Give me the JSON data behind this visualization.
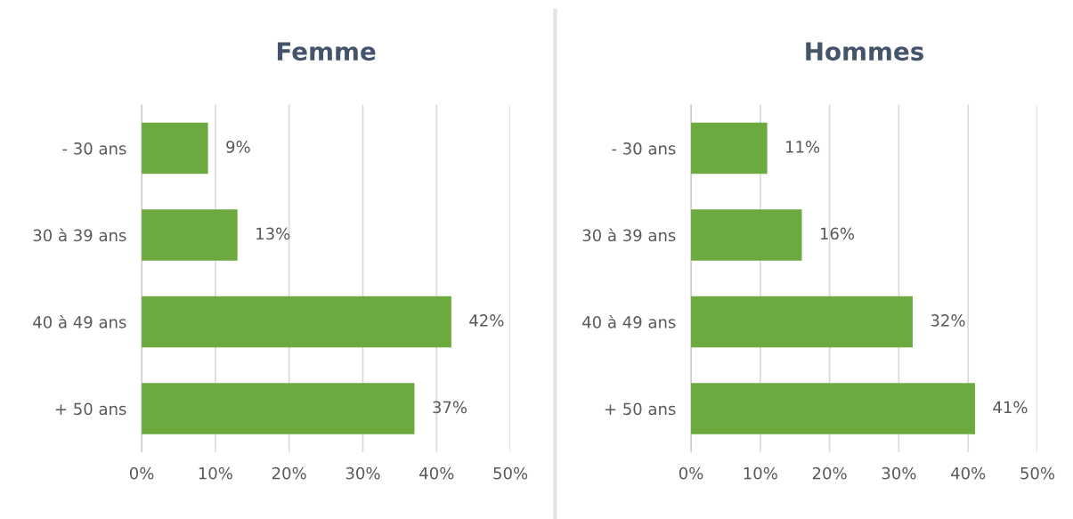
{
  "chart_data": [
    {
      "type": "bar",
      "orientation": "horizontal",
      "title": "Femme",
      "categories": [
        "- 30 ans",
        "30 à 39 ans",
        "40 à 49 ans",
        "+ 50 ans"
      ],
      "values": [
        9,
        13,
        42,
        37
      ],
      "color": "#6aaa3f",
      "data_labels": true,
      "value_labels": [
        "9%",
        "13%",
        "42%",
        "37%"
      ],
      "xlim": [
        0,
        50
      ],
      "xticks": [
        {
          "value": 0,
          "label": "0%"
        },
        {
          "value": 10,
          "label": "10%"
        },
        {
          "value": 20,
          "label": "20%"
        },
        {
          "value": 30,
          "label": "30%"
        },
        {
          "value": 40,
          "label": "40%"
        },
        {
          "value": 50,
          "label": "50%"
        }
      ],
      "grid": "x"
    },
    {
      "type": "bar",
      "orientation": "horizontal",
      "title": "Hommes",
      "categories": [
        "- 30 ans",
        "30 à 39 ans",
        "40 à 49 ans",
        "+ 50 ans"
      ],
      "values": [
        11,
        16,
        32,
        41
      ],
      "color": "#6aaa3f",
      "data_labels": true,
      "value_labels": [
        "11%",
        "16%",
        "32%",
        "41%"
      ],
      "xlim": [
        0,
        50
      ],
      "xticks": [
        {
          "value": 0,
          "label": "0%"
        },
        {
          "value": 10,
          "label": "10%"
        },
        {
          "value": 20,
          "label": "20%"
        },
        {
          "value": 30,
          "label": "30%"
        },
        {
          "value": 40,
          "label": "40%"
        },
        {
          "value": 50,
          "label": "50%"
        }
      ],
      "grid": "x"
    }
  ]
}
